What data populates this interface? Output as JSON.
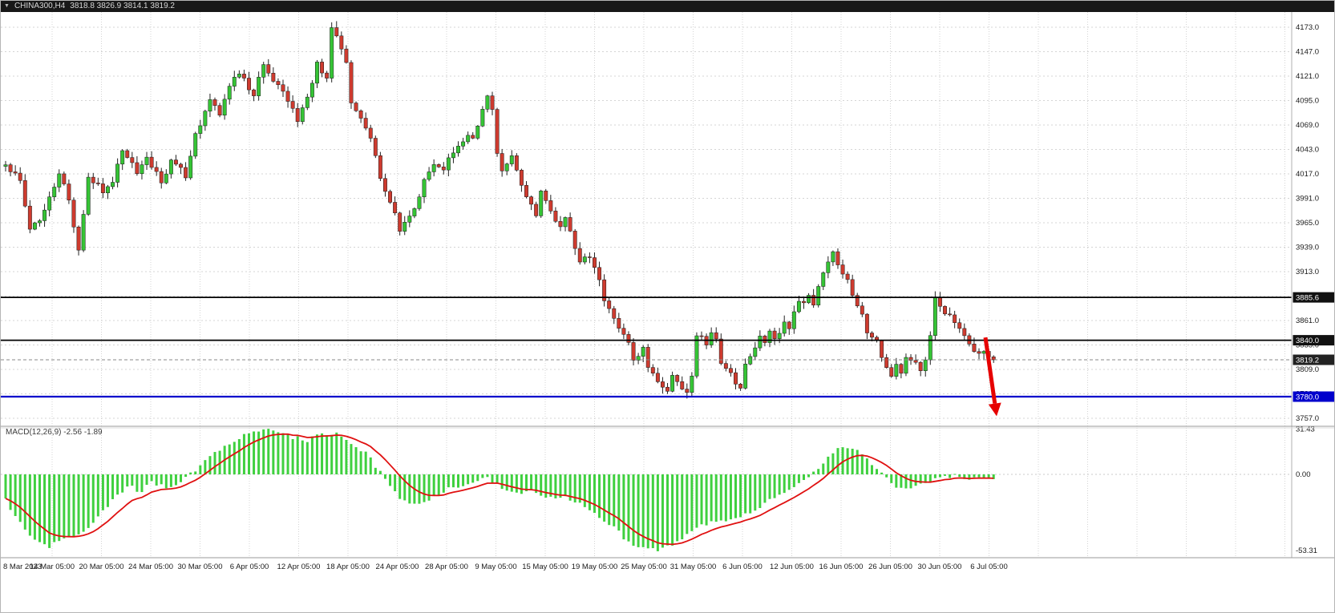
{
  "header": {
    "symbol": "CHINA300,H4",
    "ohlc": "3818.8 3826.9 3814.1 3819.2"
  },
  "colors": {
    "bull": "#35C435",
    "bear": "#CE3B2F",
    "wick": "#222222",
    "grid": "#D4D4D4",
    "macd_hist": "#3FD03F",
    "macd_signal": "#E01010",
    "axis_text": "#1A1A1A",
    "arrow": "#E60000",
    "separator": "#9A9A9A"
  },
  "chart_data": {
    "type": "candlestick",
    "symbol": "CHINA300",
    "timeframe": "H4",
    "last_quote": {
      "open": 3818.8,
      "high": 3826.9,
      "low": 3814.1,
      "close": 3819.2
    },
    "price_axis": {
      "min": 3757.0,
      "max": 4173.0,
      "step": 26.0,
      "ticks": [
        4173.0,
        4147.0,
        4121.0,
        4095.0,
        4069.0,
        4043.0,
        4017.0,
        3991.0,
        3965.0,
        3939.0,
        3913.0,
        3887.0,
        3861.0,
        3835.0,
        3809.0,
        3783.0,
        3757.0
      ]
    },
    "time_labels": [
      "8 Mar 2023",
      "14 Mar 05:00",
      "20 Mar 05:00",
      "24 Mar 05:00",
      "30 Mar 05:00",
      "6 Apr 05:00",
      "12 Apr 05:00",
      "18 Apr 05:00",
      "24 Apr 05:00",
      "28 Apr 05:00",
      "9 May 05:00",
      "15 May 05:00",
      "19 May 05:00",
      "25 May 05:00",
      "31 May 05:00",
      "6 Jun 05:00",
      "12 Jun 05:00",
      "16 Jun 05:00",
      "26 Jun 05:00",
      "30 Jun 05:00",
      "6 Jul 05:00"
    ],
    "levels": [
      {
        "price": 3885.6,
        "label": "3885.6",
        "line_color": "#000000",
        "badge_color": "#111111",
        "width": 1.8,
        "style": "solid"
      },
      {
        "price": 3840.0,
        "label": "3840.0",
        "line_color": "#000000",
        "badge_color": "#111111",
        "width": 1.8,
        "style": "solid"
      },
      {
        "price": 3819.2,
        "label": "3819.2",
        "line_color": "#8a8a8a",
        "badge_color": "#222222",
        "width": 1.0,
        "style": "dashed"
      },
      {
        "price": 3780.0,
        "label": "3780.0",
        "line_color": "#0000CC",
        "badge_color": "#0000CC",
        "width": 2.2,
        "style": "solid"
      }
    ],
    "close_path": [
      [
        0,
        4025
      ],
      [
        3,
        4010
      ],
      [
        5,
        3958
      ],
      [
        8,
        3976
      ],
      [
        11,
        4020
      ],
      [
        13,
        3986
      ],
      [
        15,
        3938
      ],
      [
        17,
        4015
      ],
      [
        20,
        3998
      ],
      [
        22,
        4010
      ],
      [
        24,
        4043
      ],
      [
        27,
        4018
      ],
      [
        29,
        4035
      ],
      [
        32,
        4008
      ],
      [
        34,
        4030
      ],
      [
        37,
        4016
      ],
      [
        39,
        4058
      ],
      [
        42,
        4095
      ],
      [
        44,
        4078
      ],
      [
        46,
        4108
      ],
      [
        48,
        4125
      ],
      [
        51,
        4098
      ],
      [
        53,
        4135
      ],
      [
        55,
        4118
      ],
      [
        58,
        4096
      ],
      [
        60,
        4076
      ],
      [
        62,
        4100
      ],
      [
        64,
        4133
      ],
      [
        66,
        4122
      ],
      [
        67,
        4170
      ],
      [
        69,
        4152
      ],
      [
        70,
        4138
      ],
      [
        71,
        4095
      ],
      [
        73,
        4076
      ],
      [
        75,
        4052
      ],
      [
        76,
        4035
      ],
      [
        78,
        3996
      ],
      [
        80,
        3972
      ],
      [
        81,
        3958
      ],
      [
        83,
        3970
      ],
      [
        85,
        3992
      ],
      [
        86,
        4012
      ],
      [
        88,
        4028
      ],
      [
        90,
        4020
      ],
      [
        91,
        4036
      ],
      [
        93,
        4046
      ],
      [
        95,
        4060
      ],
      [
        96,
        4052
      ],
      [
        98,
        4086
      ],
      [
        99,
        4100
      ],
      [
        100,
        4084
      ],
      [
        101,
        4040
      ],
      [
        102,
        4018
      ],
      [
        104,
        4036
      ],
      [
        105,
        4018
      ],
      [
        107,
        3990
      ],
      [
        109,
        3974
      ],
      [
        110,
        3996
      ],
      [
        112,
        3980
      ],
      [
        114,
        3958
      ],
      [
        115,
        3970
      ],
      [
        117,
        3938
      ],
      [
        118,
        3924
      ],
      [
        120,
        3930
      ],
      [
        122,
        3904
      ],
      [
        123,
        3880
      ],
      [
        125,
        3862
      ],
      [
        126,
        3850
      ],
      [
        128,
        3838
      ],
      [
        129,
        3820
      ],
      [
        131,
        3830
      ],
      [
        132,
        3812
      ],
      [
        134,
        3798
      ],
      [
        135,
        3788
      ],
      [
        136,
        3784
      ],
      [
        137,
        3800
      ],
      [
        139,
        3790
      ],
      [
        140,
        3784
      ],
      [
        141,
        3802
      ],
      [
        142,
        3846
      ],
      [
        144,
        3838
      ],
      [
        145,
        3850
      ],
      [
        146,
        3840
      ],
      [
        147,
        3818
      ],
      [
        149,
        3808
      ],
      [
        150,
        3794
      ],
      [
        151,
        3788
      ],
      [
        152,
        3814
      ],
      [
        154,
        3830
      ],
      [
        155,
        3846
      ],
      [
        156,
        3838
      ],
      [
        157,
        3850
      ],
      [
        158,
        3840
      ],
      [
        160,
        3860
      ],
      [
        161,
        3854
      ],
      [
        162,
        3870
      ],
      [
        163,
        3880
      ],
      [
        165,
        3886
      ],
      [
        166,
        3878
      ],
      [
        167,
        3896
      ],
      [
        168,
        3910
      ],
      [
        170,
        3932
      ],
      [
        171,
        3920
      ],
      [
        172,
        3910
      ],
      [
        173,
        3904
      ],
      [
        174,
        3888
      ],
      [
        175,
        3878
      ],
      [
        176,
        3868
      ],
      [
        177,
        3848
      ],
      [
        179,
        3838
      ],
      [
        180,
        3820
      ],
      [
        181,
        3808
      ],
      [
        182,
        3804
      ],
      [
        183,
        3816
      ],
      [
        184,
        3808
      ],
      [
        185,
        3820
      ],
      [
        187,
        3814
      ],
      [
        188,
        3808
      ],
      [
        189,
        3820
      ],
      [
        190,
        3842
      ],
      [
        191,
        3886
      ],
      [
        192,
        3878
      ],
      [
        193,
        3868
      ],
      [
        195,
        3862
      ],
      [
        196,
        3852
      ],
      [
        197,
        3844
      ],
      [
        198,
        3838
      ],
      [
        200,
        3824
      ],
      [
        201,
        3828
      ],
      [
        203,
        3819.2
      ]
    ],
    "macd": {
      "label": "MACD(12,26,9) -2.56 -1.89",
      "macd_value": -2.56,
      "signal_value": -1.89,
      "scale": {
        "max": 31.43,
        "zero": 0.0,
        "min": -53.31,
        "tick_labels": [
          "31.43",
          "0.00",
          "-53.31"
        ]
      },
      "values_path": [
        [
          0,
          -18
        ],
        [
          2,
          -30
        ],
        [
          6,
          -45
        ],
        [
          9,
          -50
        ],
        [
          12,
          -46
        ],
        [
          16,
          -40
        ],
        [
          19,
          -30
        ],
        [
          22,
          -18
        ],
        [
          25,
          -8
        ],
        [
          28,
          -12
        ],
        [
          30,
          -5
        ],
        [
          33,
          -9
        ],
        [
          35,
          -7
        ],
        [
          39,
          3
        ],
        [
          42,
          12
        ],
        [
          45,
          20
        ],
        [
          48,
          26
        ],
        [
          52,
          30
        ],
        [
          54,
          31
        ],
        [
          57,
          29
        ],
        [
          59,
          26
        ],
        [
          62,
          24
        ],
        [
          64,
          27
        ],
        [
          67,
          29
        ],
        [
          69,
          27
        ],
        [
          71,
          22
        ],
        [
          74,
          15
        ],
        [
          76,
          6
        ],
        [
          79,
          -7
        ],
        [
          81,
          -16
        ],
        [
          84,
          -21
        ],
        [
          86,
          -19
        ],
        [
          89,
          -14
        ],
        [
          91,
          -9
        ],
        [
          95,
          -7
        ],
        [
          97,
          -4
        ],
        [
          99,
          -3
        ],
        [
          101,
          -7
        ],
        [
          103,
          -11
        ],
        [
          106,
          -14
        ],
        [
          108,
          -12
        ],
        [
          110,
          -14
        ],
        [
          112,
          -17
        ],
        [
          115,
          -15
        ],
        [
          117,
          -19
        ],
        [
          120,
          -24
        ],
        [
          122,
          -29
        ],
        [
          125,
          -37
        ],
        [
          127,
          -44
        ],
        [
          129,
          -50
        ],
        [
          132,
          -53
        ],
        [
          135,
          -52
        ],
        [
          138,
          -48
        ],
        [
          140,
          -42
        ],
        [
          143,
          -36
        ],
        [
          145,
          -33
        ],
        [
          147,
          -32
        ],
        [
          150,
          -31
        ],
        [
          152,
          -28
        ],
        [
          155,
          -23
        ],
        [
          157,
          -18
        ],
        [
          160,
          -13
        ],
        [
          162,
          -8
        ],
        [
          165,
          -3
        ],
        [
          167,
          4
        ],
        [
          169,
          12
        ],
        [
          171,
          17
        ],
        [
          173,
          19
        ],
        [
          175,
          17
        ],
        [
          177,
          11
        ],
        [
          179,
          4
        ],
        [
          181,
          -3
        ],
        [
          183,
          -8
        ],
        [
          185,
          -10
        ],
        [
          187,
          -8
        ],
        [
          189,
          -6
        ],
        [
          191,
          -4
        ],
        [
          193,
          -2
        ],
        [
          195,
          -1
        ],
        [
          197,
          -2
        ],
        [
          199,
          -3
        ],
        [
          201,
          -3
        ],
        [
          203,
          -2.56
        ]
      ]
    },
    "annotations": [
      {
        "shape": "down-arrow",
        "color": "#E60000",
        "from_price": 3843,
        "to_price": 3766
      }
    ]
  }
}
